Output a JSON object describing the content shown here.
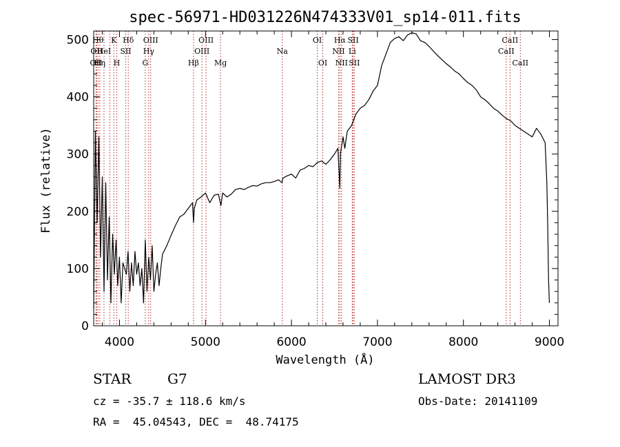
{
  "chart_data": {
    "type": "line",
    "title": "spec-56971-HD031226N474333V01_sp14-011.fits",
    "xlabel": "Wavelength (Å)",
    "ylabel": "Flux (relative)",
    "xlim": [
      3700,
      9100
    ],
    "ylim": [
      0,
      515
    ],
    "xticks": [
      4000,
      5000,
      6000,
      7000,
      8000,
      9000
    ],
    "yticks": [
      0,
      100,
      200,
      300,
      400,
      500
    ],
    "grid": false,
    "series": [
      {
        "x": [
          3700,
          3720,
          3740,
          3760,
          3780,
          3800,
          3820,
          3840,
          3860,
          3880,
          3900,
          3920,
          3940,
          3960,
          3980,
          4000,
          4020,
          4040,
          4060,
          4080,
          4100,
          4120,
          4140,
          4160,
          4180,
          4200,
          4220,
          4240,
          4260,
          4280,
          4300,
          4320,
          4340,
          4360,
          4380,
          4400,
          4420,
          4440,
          4460,
          4480,
          4500,
          4550,
          4600,
          4650,
          4700,
          4750,
          4800,
          4850,
          4861,
          4870,
          4900,
          4950,
          5000,
          5050,
          5100,
          5150,
          5180,
          5200,
          5250,
          5300,
          5350,
          5400,
          5450,
          5500,
          5550,
          5600,
          5650,
          5700,
          5750,
          5800,
          5850,
          5890,
          5900,
          5950,
          6000,
          6050,
          6100,
          6150,
          6200,
          6250,
          6300,
          6350,
          6400,
          6450,
          6500,
          6540,
          6563,
          6570,
          6600,
          6620,
          6650,
          6700,
          6750,
          6800,
          6850,
          6900,
          6950,
          7000,
          7050,
          7100,
          7150,
          7200,
          7250,
          7300,
          7350,
          7400,
          7450,
          7500,
          7550,
          7600,
          7650,
          7700,
          7750,
          7800,
          7850,
          7900,
          7950,
          8000,
          8050,
          8100,
          8150,
          8200,
          8250,
          8300,
          8350,
          8400,
          8450,
          8500,
          8550,
          8600,
          8650,
          8700,
          8750,
          8800,
          8850,
          8900,
          8950,
          8970,
          8980,
          8990,
          9000
        ],
        "y": [
          30,
          340,
          180,
          330,
          120,
          260,
          60,
          250,
          80,
          190,
          40,
          160,
          90,
          150,
          70,
          120,
          40,
          110,
          100,
          90,
          130,
          60,
          110,
          70,
          130,
          90,
          110,
          70,
          100,
          40,
          150,
          60,
          120,
          80,
          140,
          60,
          90,
          110,
          70,
          100,
          125,
          140,
          158,
          175,
          190,
          195,
          205,
          215,
          180,
          205,
          220,
          225,
          232,
          215,
          228,
          230,
          210,
          232,
          225,
          230,
          238,
          240,
          238,
          242,
          245,
          244,
          248,
          250,
          250,
          252,
          255,
          250,
          258,
          262,
          265,
          258,
          272,
          275,
          280,
          278,
          285,
          288,
          282,
          290,
          300,
          310,
          240,
          300,
          330,
          310,
          340,
          350,
          370,
          380,
          385,
          395,
          410,
          420,
          455,
          475,
          495,
          502,
          505,
          498,
          508,
          512,
          510,
          498,
          495,
          488,
          480,
          472,
          465,
          458,
          452,
          445,
          440,
          432,
          425,
          420,
          412,
          400,
          395,
          388,
          380,
          375,
          368,
          362,
          358,
          350,
          345,
          340,
          335,
          330,
          345,
          335,
          320,
          250,
          180,
          80,
          40
        ]
      }
    ],
    "lines": [
      {
        "wl": 3727,
        "label": "OII",
        "row": 3
      },
      {
        "wl": 3734,
        "label": "OII",
        "row": 2
      },
      {
        "wl": 3750,
        "label": "Hθ",
        "row": 1
      },
      {
        "wl": 3771,
        "label": "Hη",
        "row": 3
      },
      {
        "wl": 3820,
        "label": "HeI",
        "row": 2
      },
      {
        "wl": 3889,
        "label": "",
        "row": 0
      },
      {
        "wl": 3934,
        "label": "K",
        "row": 1
      },
      {
        "wl": 3969,
        "label": "H",
        "row": 3
      },
      {
        "wl": 4072,
        "label": "SII",
        "row": 2
      },
      {
        "wl": 4102,
        "label": "Hδ",
        "row": 1
      },
      {
        "wl": 4300,
        "label": "G",
        "row": 3
      },
      {
        "wl": 4340,
        "label": "Hγ",
        "row": 2
      },
      {
        "wl": 4363,
        "label": "OIII",
        "row": 1
      },
      {
        "wl": 4861,
        "label": "Hβ",
        "row": 3
      },
      {
        "wl": 4959,
        "label": "OIII",
        "row": 2
      },
      {
        "wl": 5007,
        "label": "OIII",
        "row": 1
      },
      {
        "wl": 5175,
        "label": "Mg",
        "row": 3
      },
      {
        "wl": 5893,
        "label": "Na",
        "row": 2
      },
      {
        "wl": 6300,
        "label": "OI",
        "row": 1
      },
      {
        "wl": 6364,
        "label": "OI",
        "row": 3
      },
      {
        "wl": 6548,
        "label": "NII",
        "row": 2
      },
      {
        "wl": 6563,
        "label": "Hα",
        "row": 1
      },
      {
        "wl": 6583,
        "label": "NII",
        "row": 3
      },
      {
        "wl": 6707,
        "label": "Li",
        "row": 2
      },
      {
        "wl": 6717,
        "label": "SII",
        "row": 1
      },
      {
        "wl": 6731,
        "label": "SII",
        "row": 3
      },
      {
        "wl": 8498,
        "label": "CaII",
        "row": 2
      },
      {
        "wl": 8542,
        "label": "CaII",
        "row": 1
      },
      {
        "wl": 8662,
        "label": "CaII",
        "row": 3
      }
    ]
  },
  "info": {
    "object_class": "STAR",
    "subclass": "G7",
    "survey": "LAMOST DR3",
    "cz": "cz = -35.7 ± 118.6 km/s",
    "obs_date": "Obs-Date: 20141109",
    "radec": "RA =  45.04543, DEC =  48.74175"
  }
}
